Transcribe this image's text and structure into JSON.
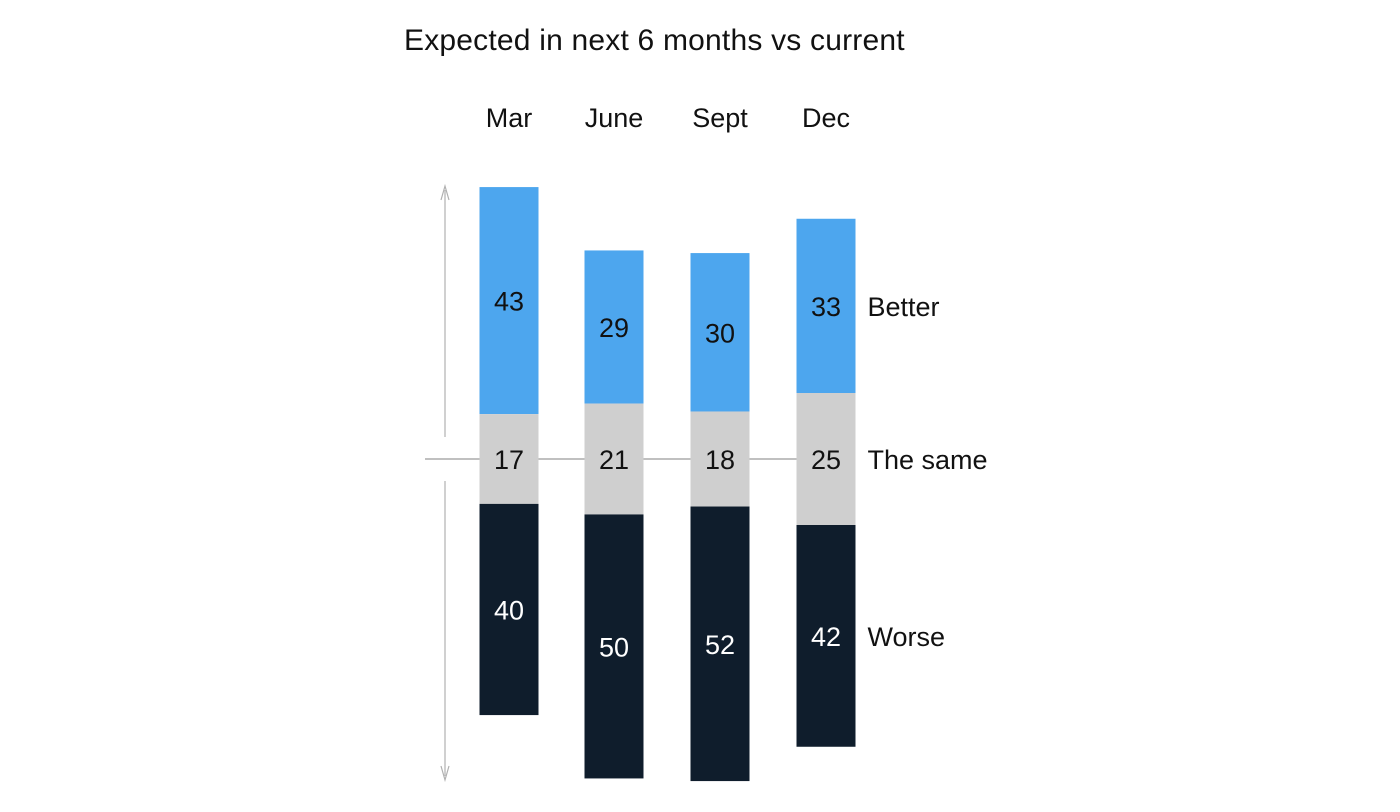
{
  "chart_data": {
    "type": "bar",
    "stacked": true,
    "diverging": true,
    "title": "Expected in next 6 months vs current",
    "categories": [
      "Mar",
      "June",
      "Sept",
      "Dec"
    ],
    "series": [
      {
        "name": "Better",
        "values": [
          43,
          29,
          30,
          33
        ],
        "color": "#4DA6EE",
        "text_color": "#111111"
      },
      {
        "name": "The same",
        "values": [
          17,
          21,
          18,
          25
        ],
        "color": "#CFCFCF",
        "text_color": "#111111"
      },
      {
        "name": "Worse",
        "values": [
          40,
          50,
          52,
          42
        ],
        "color": "#0F1D2C",
        "text_color": "#FFFFFF"
      }
    ],
    "legend_placement": "right, aligned with segments of last bar",
    "grid": false
  }
}
